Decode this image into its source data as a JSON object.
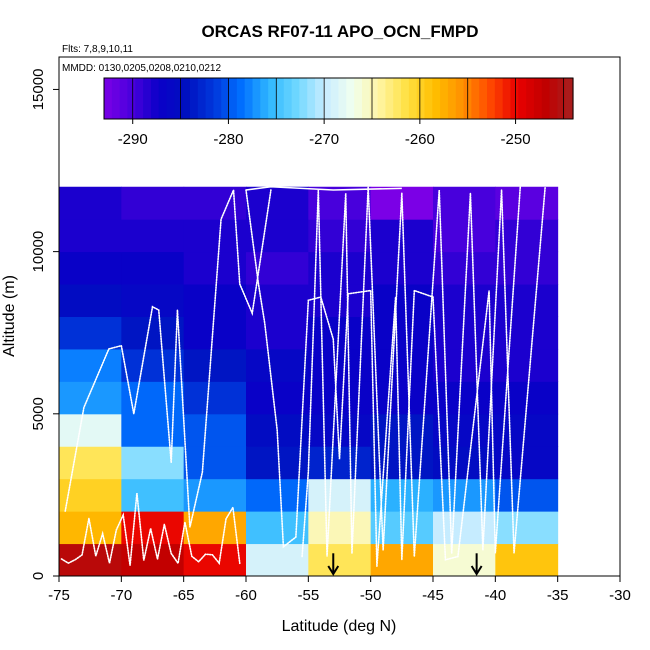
{
  "chart_data": {
    "type": "heatmap",
    "title": "ORCAS RF07-11 APO_OCN_FMPD",
    "notes": [
      "Flts: 7,8,9,10,11",
      "MMDD: 0130,0205,0208,0210,0212"
    ],
    "xlabel": "Latitude (deg N)",
    "ylabel": "Altitude (m)",
    "xlim": [
      -75,
      -30
    ],
    "ylim": [
      0,
      16000
    ],
    "x_ticks": [
      "-75",
      "-70",
      "-65",
      "-60",
      "-55",
      "-50",
      "-45",
      "-40",
      "-35",
      "-30"
    ],
    "y_ticks": [
      "0",
      "5000",
      "10000",
      "15000"
    ],
    "colorbar": {
      "range": [
        -293,
        -244
      ],
      "ticks": [
        "-290",
        "-280",
        "-270",
        "-260",
        "-250"
      ],
      "tick_values": [
        -290,
        -280,
        -270,
        -260,
        -250
      ],
      "colors": [
        "#7B00E6",
        "#4B00DD",
        "#0A00C8",
        "#0010C0",
        "#0038DC",
        "#0070FF",
        "#30B8FF",
        "#70D8FF",
        "#C8ECFF",
        "#F0FFF0",
        "#FFF4A0",
        "#FFE040",
        "#FFBE00",
        "#FF9000",
        "#FF4800",
        "#E80000",
        "#C00000",
        "#A81F1F"
      ]
    },
    "lat_bins": [
      -75,
      -70,
      -65,
      -60,
      -55,
      -50,
      -45,
      -40,
      -35
    ],
    "alt_bins": [
      0,
      1000,
      2000,
      3000,
      4000,
      5000,
      6000,
      7000,
      8000,
      9000,
      10000,
      11000,
      12000
    ],
    "cells": [
      [
        -246,
        -247,
        -250,
        -269,
        -262,
        -257,
        -266,
        -259
      ],
      [
        -258,
        -250,
        -257,
        -275,
        -265,
        -274,
        -270,
        -272
      ],
      [
        -260,
        -275,
        -277,
        -279,
        -269,
        -276,
        -277,
        -280
      ],
      [
        -262,
        -272,
        -280,
        -284,
        -283,
        -284,
        -285,
        -286
      ],
      [
        -268,
        -279,
        -280,
        -285,
        -286,
        -284,
        -286,
        -286
      ],
      [
        -277,
        -279,
        -282,
        -287,
        -287,
        -287,
        -287,
        -287
      ],
      [
        -278,
        -282,
        -284,
        -286,
        -287,
        -287,
        -288,
        -288
      ],
      [
        -282,
        -284,
        -287,
        -288,
        -287,
        -287,
        -288,
        -288
      ],
      [
        -285,
        -286,
        -287,
        -288,
        -288,
        -287,
        -288,
        -288
      ],
      [
        -287,
        -287,
        -288,
        -289,
        -288,
        -288,
        -289,
        -289
      ],
      [
        -288,
        -288,
        -288,
        -288,
        -289,
        -288,
        -290,
        -289
      ],
      [
        -288,
        -289,
        -289,
        -288,
        -290,
        -293,
        -290,
        -291
      ]
    ],
    "markers": [
      {
        "label": "down-arrow",
        "lat": -53,
        "alt": 700
      },
      {
        "label": "down-arrow",
        "lat": -41.5,
        "alt": 700
      }
    ]
  }
}
